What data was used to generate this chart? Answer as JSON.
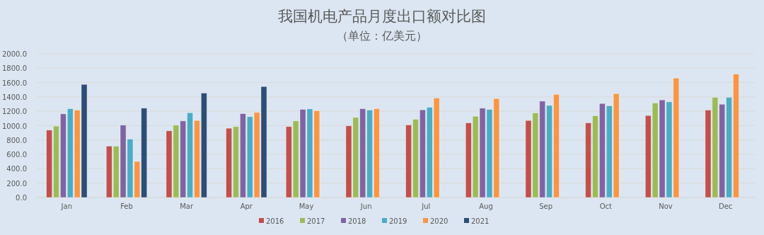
{
  "chart_data": {
    "type": "bar",
    "title": "我国机电产品月度出口额对比图",
    "subtitle": "（单位：亿美元）",
    "categories": [
      "Jan",
      "Feb",
      "Mar",
      "Apr",
      "May",
      "Jun",
      "Jul",
      "Aug",
      "Sep",
      "Oct",
      "Nov",
      "Dec"
    ],
    "series": [
      {
        "name": "2016",
        "color": "#c0504d",
        "values": [
          938,
          715,
          928,
          964,
          987,
          997,
          1010,
          1039,
          1072,
          1039,
          1141,
          1217
        ]
      },
      {
        "name": "2017",
        "color": "#9bbb59",
        "values": [
          994,
          715,
          1007,
          987,
          1066,
          1115,
          1089,
          1131,
          1177,
          1138,
          1315,
          1394
        ]
      },
      {
        "name": "2018",
        "color": "#8064a2",
        "values": [
          1164,
          1007,
          1066,
          1167,
          1226,
          1236,
          1220,
          1243,
          1341,
          1308,
          1358,
          1298
        ]
      },
      {
        "name": "2019",
        "color": "#4bacc6",
        "values": [
          1236,
          813,
          1180,
          1125,
          1233,
          1217,
          1256,
          1226,
          1282,
          1276,
          1331,
          1394
        ]
      },
      {
        "name": "2020",
        "color": "#f79646",
        "values": [
          1217,
          502,
          1072,
          1184,
          1207,
          1236,
          1384,
          1377,
          1436,
          1446,
          1662,
          1718
        ]
      },
      {
        "name": "2021",
        "color": "#2c4d75",
        "values": [
          1574,
          1243,
          1453,
          1544,
          null,
          null,
          null,
          null,
          null,
          null,
          null,
          null
        ]
      }
    ],
    "ylim": [
      0,
      2000
    ],
    "yticks": [
      {
        "value": 0,
        "label": "0.0"
      },
      {
        "value": 200,
        "label": "200.0"
      },
      {
        "value": 400,
        "label": "400.0"
      },
      {
        "value": 600,
        "label": "600.0"
      },
      {
        "value": 800,
        "label": "800.0"
      },
      {
        "value": 1000,
        "label": "1000.0"
      },
      {
        "value": 1200,
        "label": "1200.0"
      },
      {
        "value": 1400,
        "label": "1400.0"
      },
      {
        "value": 1600,
        "label": "1600.0"
      },
      {
        "value": 1800,
        "label": "1800.0"
      },
      {
        "value": 2000,
        "label": "2000.0"
      }
    ],
    "grid": "y",
    "legend": "bottom"
  }
}
